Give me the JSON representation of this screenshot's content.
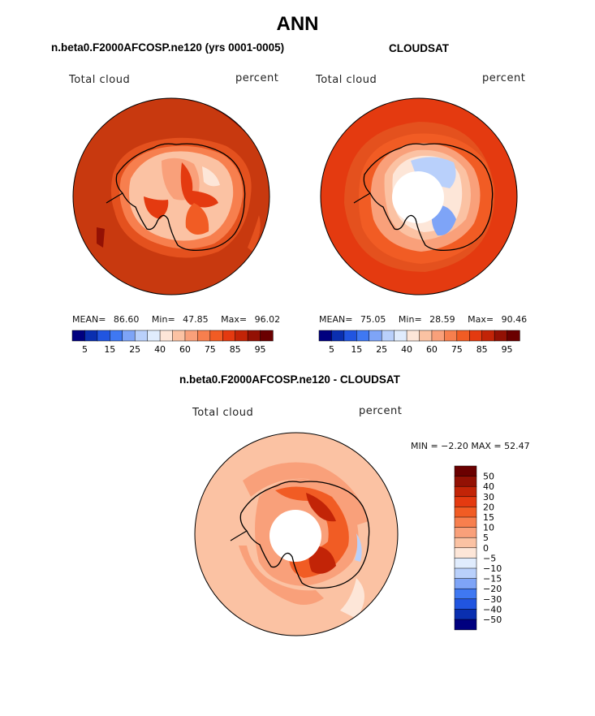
{
  "main_title": "ANN",
  "panel_left_title": "n.beta0.F2000AFCOSP.ne120 (yrs 0001-0005)",
  "panel_right_title": "CLOUDSAT",
  "panel_diff_title": "n.beta0.F2000AFCOSP.ne120 - CLOUDSAT",
  "colors": {
    "cmap": [
      "#00007f",
      "#0a2fb0",
      "#2155e0",
      "#3f78f2",
      "#7ea4f7",
      "#b9d0fb",
      "#e0ecfd",
      "#fde6d8",
      "#fbc2a3",
      "#f9a07a",
      "#f77f4e",
      "#f15c24",
      "#e43a10",
      "#c22407",
      "#931104",
      "#6a0000"
    ],
    "ocean_high": "#c8390f",
    "ocean_mid": "#e4511e",
    "coast": "#000000"
  },
  "chart_data": [
    {
      "type": "heatmap",
      "projection": "south-polar-stereographic",
      "label_left": "Total cloud",
      "label_right": "percent",
      "stats": {
        "mean_label": "MEAN=",
        "mean": "86.60",
        "min_label": "Min=",
        "min": "47.85",
        "max_label": "Max=",
        "max": "96.02"
      },
      "colorbar": {
        "orientation": "horizontal",
        "levels": [
          5,
          10,
          15,
          20,
          25,
          30,
          40,
          50,
          60,
          70,
          75,
          80,
          85,
          90,
          95
        ],
        "tick_labels": [
          "5",
          "15",
          "25",
          "40",
          "60",
          "75",
          "85",
          "95"
        ]
      }
    },
    {
      "type": "heatmap",
      "projection": "south-polar-stereographic",
      "label_left": "Total cloud",
      "label_right": "percent",
      "stats": {
        "mean_label": "MEAN=",
        "mean": "75.05",
        "min_label": "Min=",
        "min": "28.59",
        "max_label": "Max=",
        "max": "90.46"
      },
      "colorbar": {
        "orientation": "horizontal",
        "levels": [
          5,
          10,
          15,
          20,
          25,
          30,
          40,
          50,
          60,
          70,
          75,
          80,
          85,
          90,
          95
        ],
        "tick_labels": [
          "5",
          "15",
          "25",
          "40",
          "60",
          "75",
          "85",
          "95"
        ]
      }
    },
    {
      "type": "heatmap",
      "projection": "south-polar-stereographic",
      "label_left": "Total cloud",
      "label_right": "percent",
      "minmax_text": "MIN =   −2.20 MAX =  52.47",
      "colorbar": {
        "orientation": "vertical",
        "tick_labels": [
          "50",
          "40",
          "30",
          "20",
          "15",
          "10",
          "5",
          "0",
          "−5",
          "−10",
          "−15",
          "−20",
          "−30",
          "−40",
          "−50"
        ]
      }
    }
  ]
}
